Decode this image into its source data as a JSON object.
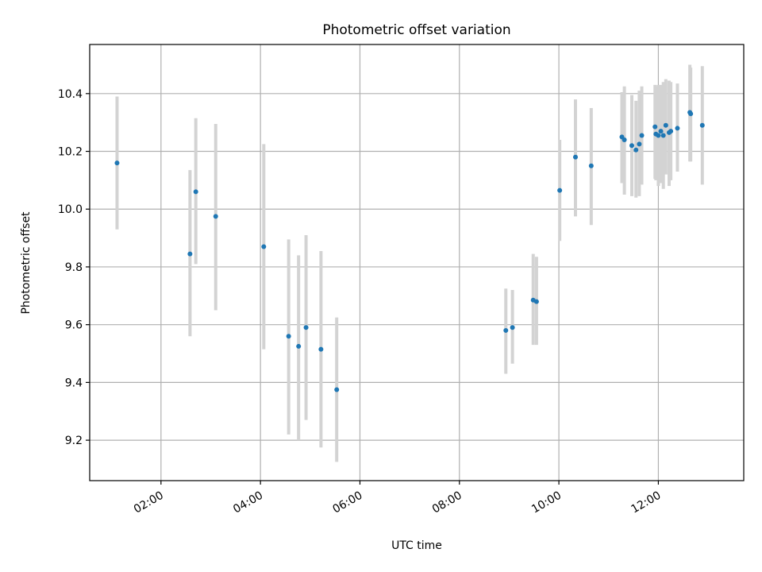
{
  "chart_data": {
    "type": "scatter",
    "title": "Photometric offset variation",
    "xlabel": "UTC time",
    "ylabel": "Photometric offset",
    "x_axis": {
      "kind": "time",
      "range": [
        "00:34",
        "13:43"
      ],
      "ticks": [
        "02:00",
        "04:00",
        "06:00",
        "08:00",
        "10:00",
        "12:00"
      ]
    },
    "y_axis": {
      "range": [
        9.06,
        10.57
      ],
      "ticks": [
        "9.2",
        "9.4",
        "9.6",
        "9.8",
        "10.0",
        "10.2",
        "10.4"
      ]
    },
    "grid": true,
    "colors": {
      "points": "#1f77b4",
      "errorbars": "#d3d3d3",
      "grid": "#b0b0b0"
    },
    "points": [
      {
        "t": "01:07",
        "y": 10.16,
        "low": 9.93,
        "high": 10.39
      },
      {
        "t": "02:35",
        "y": 9.845,
        "low": 9.56,
        "high": 10.135
      },
      {
        "t": "02:42",
        "y": 10.06,
        "low": 9.81,
        "high": 10.315
      },
      {
        "t": "03:06",
        "y": 9.975,
        "low": 9.65,
        "high": 10.295
      },
      {
        "t": "04:04",
        "y": 9.87,
        "low": 9.515,
        "high": 10.225
      },
      {
        "t": "04:34",
        "y": 9.56,
        "low": 9.22,
        "high": 9.895
      },
      {
        "t": "04:46",
        "y": 9.525,
        "low": 9.2,
        "high": 9.84
      },
      {
        "t": "04:55",
        "y": 9.59,
        "low": 9.27,
        "high": 9.91
      },
      {
        "t": "05:13",
        "y": 9.515,
        "low": 9.175,
        "high": 9.855
      },
      {
        "t": "05:32",
        "y": 9.375,
        "low": 9.125,
        "high": 9.625
      },
      {
        "t": "08:56",
        "y": 9.58,
        "low": 9.43,
        "high": 9.725
      },
      {
        "t": "09:04",
        "y": 9.59,
        "low": 9.465,
        "high": 9.72
      },
      {
        "t": "09:29",
        "y": 9.685,
        "low": 9.53,
        "high": 9.845
      },
      {
        "t": "09:33",
        "y": 9.68,
        "low": 9.53,
        "high": 9.835
      },
      {
        "t": "10:01",
        "y": 10.065,
        "low": 9.89,
        "high": 10.24
      },
      {
        "t": "10:20",
        "y": 10.18,
        "low": 9.975,
        "high": 10.38
      },
      {
        "t": "10:39",
        "y": 10.15,
        "low": 9.945,
        "high": 10.35
      },
      {
        "t": "11:16",
        "y": 10.25,
        "low": 10.09,
        "high": 10.405
      },
      {
        "t": "11:19",
        "y": 10.24,
        "low": 10.05,
        "high": 10.425
      },
      {
        "t": "11:28",
        "y": 10.22,
        "low": 10.045,
        "high": 10.395
      },
      {
        "t": "11:33",
        "y": 10.205,
        "low": 10.04,
        "high": 10.375
      },
      {
        "t": "11:37",
        "y": 10.225,
        "low": 10.045,
        "high": 10.41
      },
      {
        "t": "11:40",
        "y": 10.255,
        "low": 10.085,
        "high": 10.425
      },
      {
        "t": "11:56",
        "y": 10.285,
        "low": 10.105,
        "high": 10.43
      },
      {
        "t": "11:57",
        "y": 10.26,
        "low": 10.1,
        "high": 10.425
      },
      {
        "t": "12:00",
        "y": 10.255,
        "low": 10.08,
        "high": 10.43
      },
      {
        "t": "12:03",
        "y": 10.27,
        "low": 10.09,
        "high": 10.43
      },
      {
        "t": "12:06",
        "y": 10.255,
        "low": 10.07,
        "high": 10.44
      },
      {
        "t": "12:09",
        "y": 10.29,
        "low": 10.12,
        "high": 10.45
      },
      {
        "t": "12:13",
        "y": 10.265,
        "low": 10.08,
        "high": 10.445
      },
      {
        "t": "12:15",
        "y": 10.27,
        "low": 10.1,
        "high": 10.44
      },
      {
        "t": "12:23",
        "y": 10.28,
        "low": 10.13,
        "high": 10.435
      },
      {
        "t": "12:38",
        "y": 10.335,
        "low": 10.165,
        "high": 10.5
      },
      {
        "t": "12:39",
        "y": 10.33,
        "low": 10.165,
        "high": 10.49
      },
      {
        "t": "12:53",
        "y": 10.29,
        "low": 10.085,
        "high": 10.495
      }
    ]
  }
}
